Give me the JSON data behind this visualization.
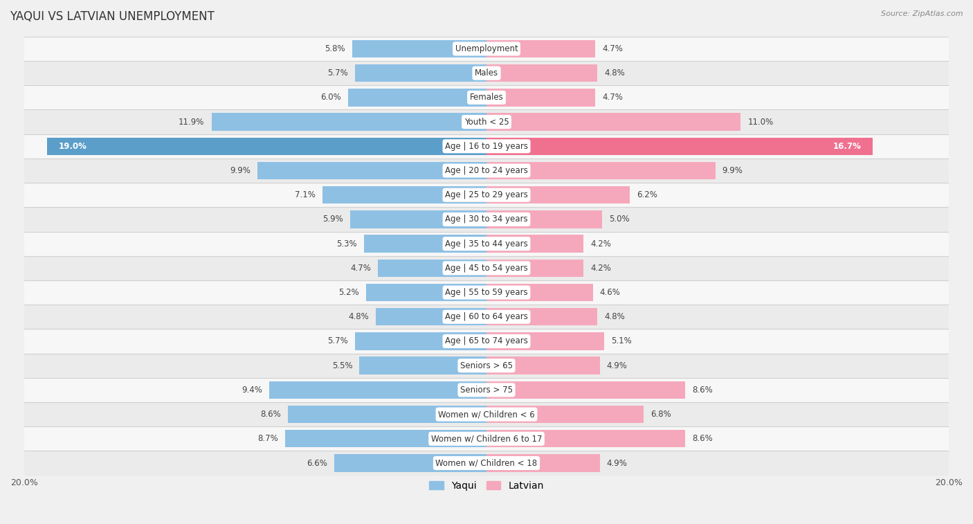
{
  "title": "YAQUI VS LATVIAN UNEMPLOYMENT",
  "source": "Source: ZipAtlas.com",
  "categories": [
    "Unemployment",
    "Males",
    "Females",
    "Youth < 25",
    "Age | 16 to 19 years",
    "Age | 20 to 24 years",
    "Age | 25 to 29 years",
    "Age | 30 to 34 years",
    "Age | 35 to 44 years",
    "Age | 45 to 54 years",
    "Age | 55 to 59 years",
    "Age | 60 to 64 years",
    "Age | 65 to 74 years",
    "Seniors > 65",
    "Seniors > 75",
    "Women w/ Children < 6",
    "Women w/ Children 6 to 17",
    "Women w/ Children < 18"
  ],
  "yaqui": [
    5.8,
    5.7,
    6.0,
    11.9,
    19.0,
    9.9,
    7.1,
    5.9,
    5.3,
    4.7,
    5.2,
    4.8,
    5.7,
    5.5,
    9.4,
    8.6,
    8.7,
    6.6
  ],
  "latvian": [
    4.7,
    4.8,
    4.7,
    11.0,
    16.7,
    9.9,
    6.2,
    5.0,
    4.2,
    4.2,
    4.6,
    4.8,
    5.1,
    4.9,
    8.6,
    6.8,
    8.6,
    4.9
  ],
  "yaqui_color": "#8ec0e4",
  "latvian_color": "#f5a8bc",
  "yaqui_highlight_color": "#5b9ec9",
  "latvian_highlight_color": "#f07090",
  "bar_height": 0.72,
  "axis_max": 20.0,
  "bg_color": "#e8e8e8",
  "row_bg_even": "#f5f5f5",
  "row_bg_odd": "#e0e0e0",
  "label_fontsize": 8.5,
  "title_fontsize": 12,
  "source_fontsize": 8,
  "legend_fontsize": 10,
  "value_color_normal": "#444444",
  "value_color_highlight_yaqui": "#ffffff",
  "value_color_highlight_latvian": "#ffffff"
}
